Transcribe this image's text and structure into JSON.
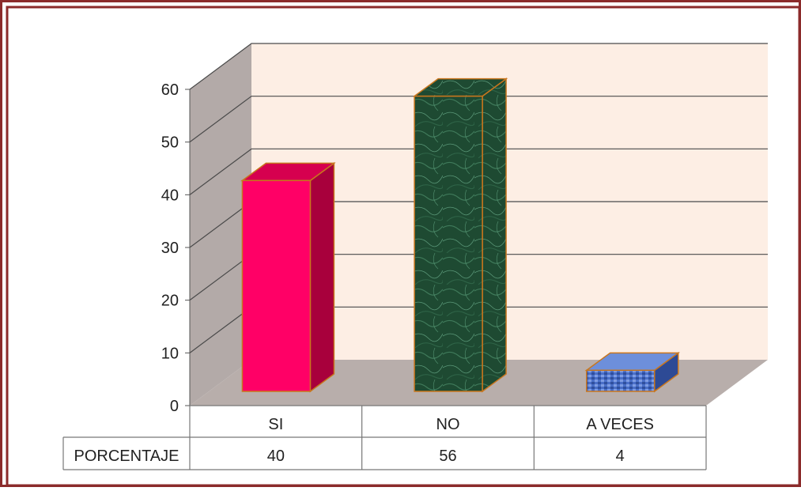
{
  "chart_data": {
    "type": "bar",
    "style": "3d-column",
    "categories": [
      "SI",
      "NO",
      "A VECES"
    ],
    "series": [
      {
        "name": "PORCENTAJE",
        "values": [
          40,
          56,
          4
        ]
      }
    ],
    "ylim": [
      0,
      60
    ],
    "yticks": [
      0,
      10,
      20,
      30,
      40,
      50,
      60
    ],
    "grid": true,
    "legend": "data-table-below",
    "bar_colors": [
      "#ff0066",
      "#1e4a32",
      "#4a6fc8"
    ],
    "side_colors": [
      "#a8003c",
      "#10301f",
      "#2d4a95"
    ],
    "top_colors": [
      "#d6004f",
      "#2c6446",
      "#6d8fdb"
    ],
    "bar_outline": "#c8761e",
    "wall_color": "#fdeee4",
    "side_wall_color": "#b3aaa8",
    "floor_color": "#b8aeab",
    "frame_color": "#8b2b2b"
  }
}
